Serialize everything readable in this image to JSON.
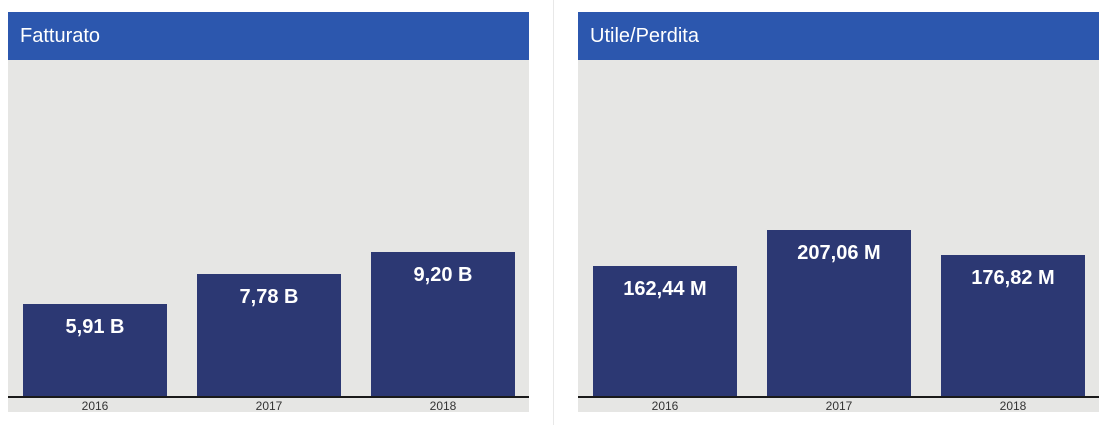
{
  "chart_data": [
    {
      "type": "bar",
      "title": "Fatturato",
      "categories": [
        "2016",
        "2017",
        "2018"
      ],
      "values": [
        5.91,
        7.78,
        9.2
      ],
      "value_labels": [
        "5,91 B",
        "7,78 B",
        "9,20 B"
      ],
      "unit": "B",
      "ylim": [
        0,
        21.5
      ],
      "grid": false,
      "legend": "none",
      "colors": {
        "header": "#2c57ae",
        "bar": "#2c3873",
        "plot_bg": "#e6e6e4"
      }
    },
    {
      "type": "bar",
      "title": "Utile/Perdita",
      "categories": [
        "2016",
        "2017",
        "2018"
      ],
      "values": [
        162.44,
        207.06,
        176.82
      ],
      "value_labels": [
        "162,44 M",
        "207,06 M",
        "176,82 M"
      ],
      "unit": "M",
      "ylim": [
        0,
        420
      ],
      "grid": false,
      "legend": "none",
      "colors": {
        "header": "#2c57ae",
        "bar": "#2c3873",
        "plot_bg": "#e6e6e4"
      }
    }
  ]
}
